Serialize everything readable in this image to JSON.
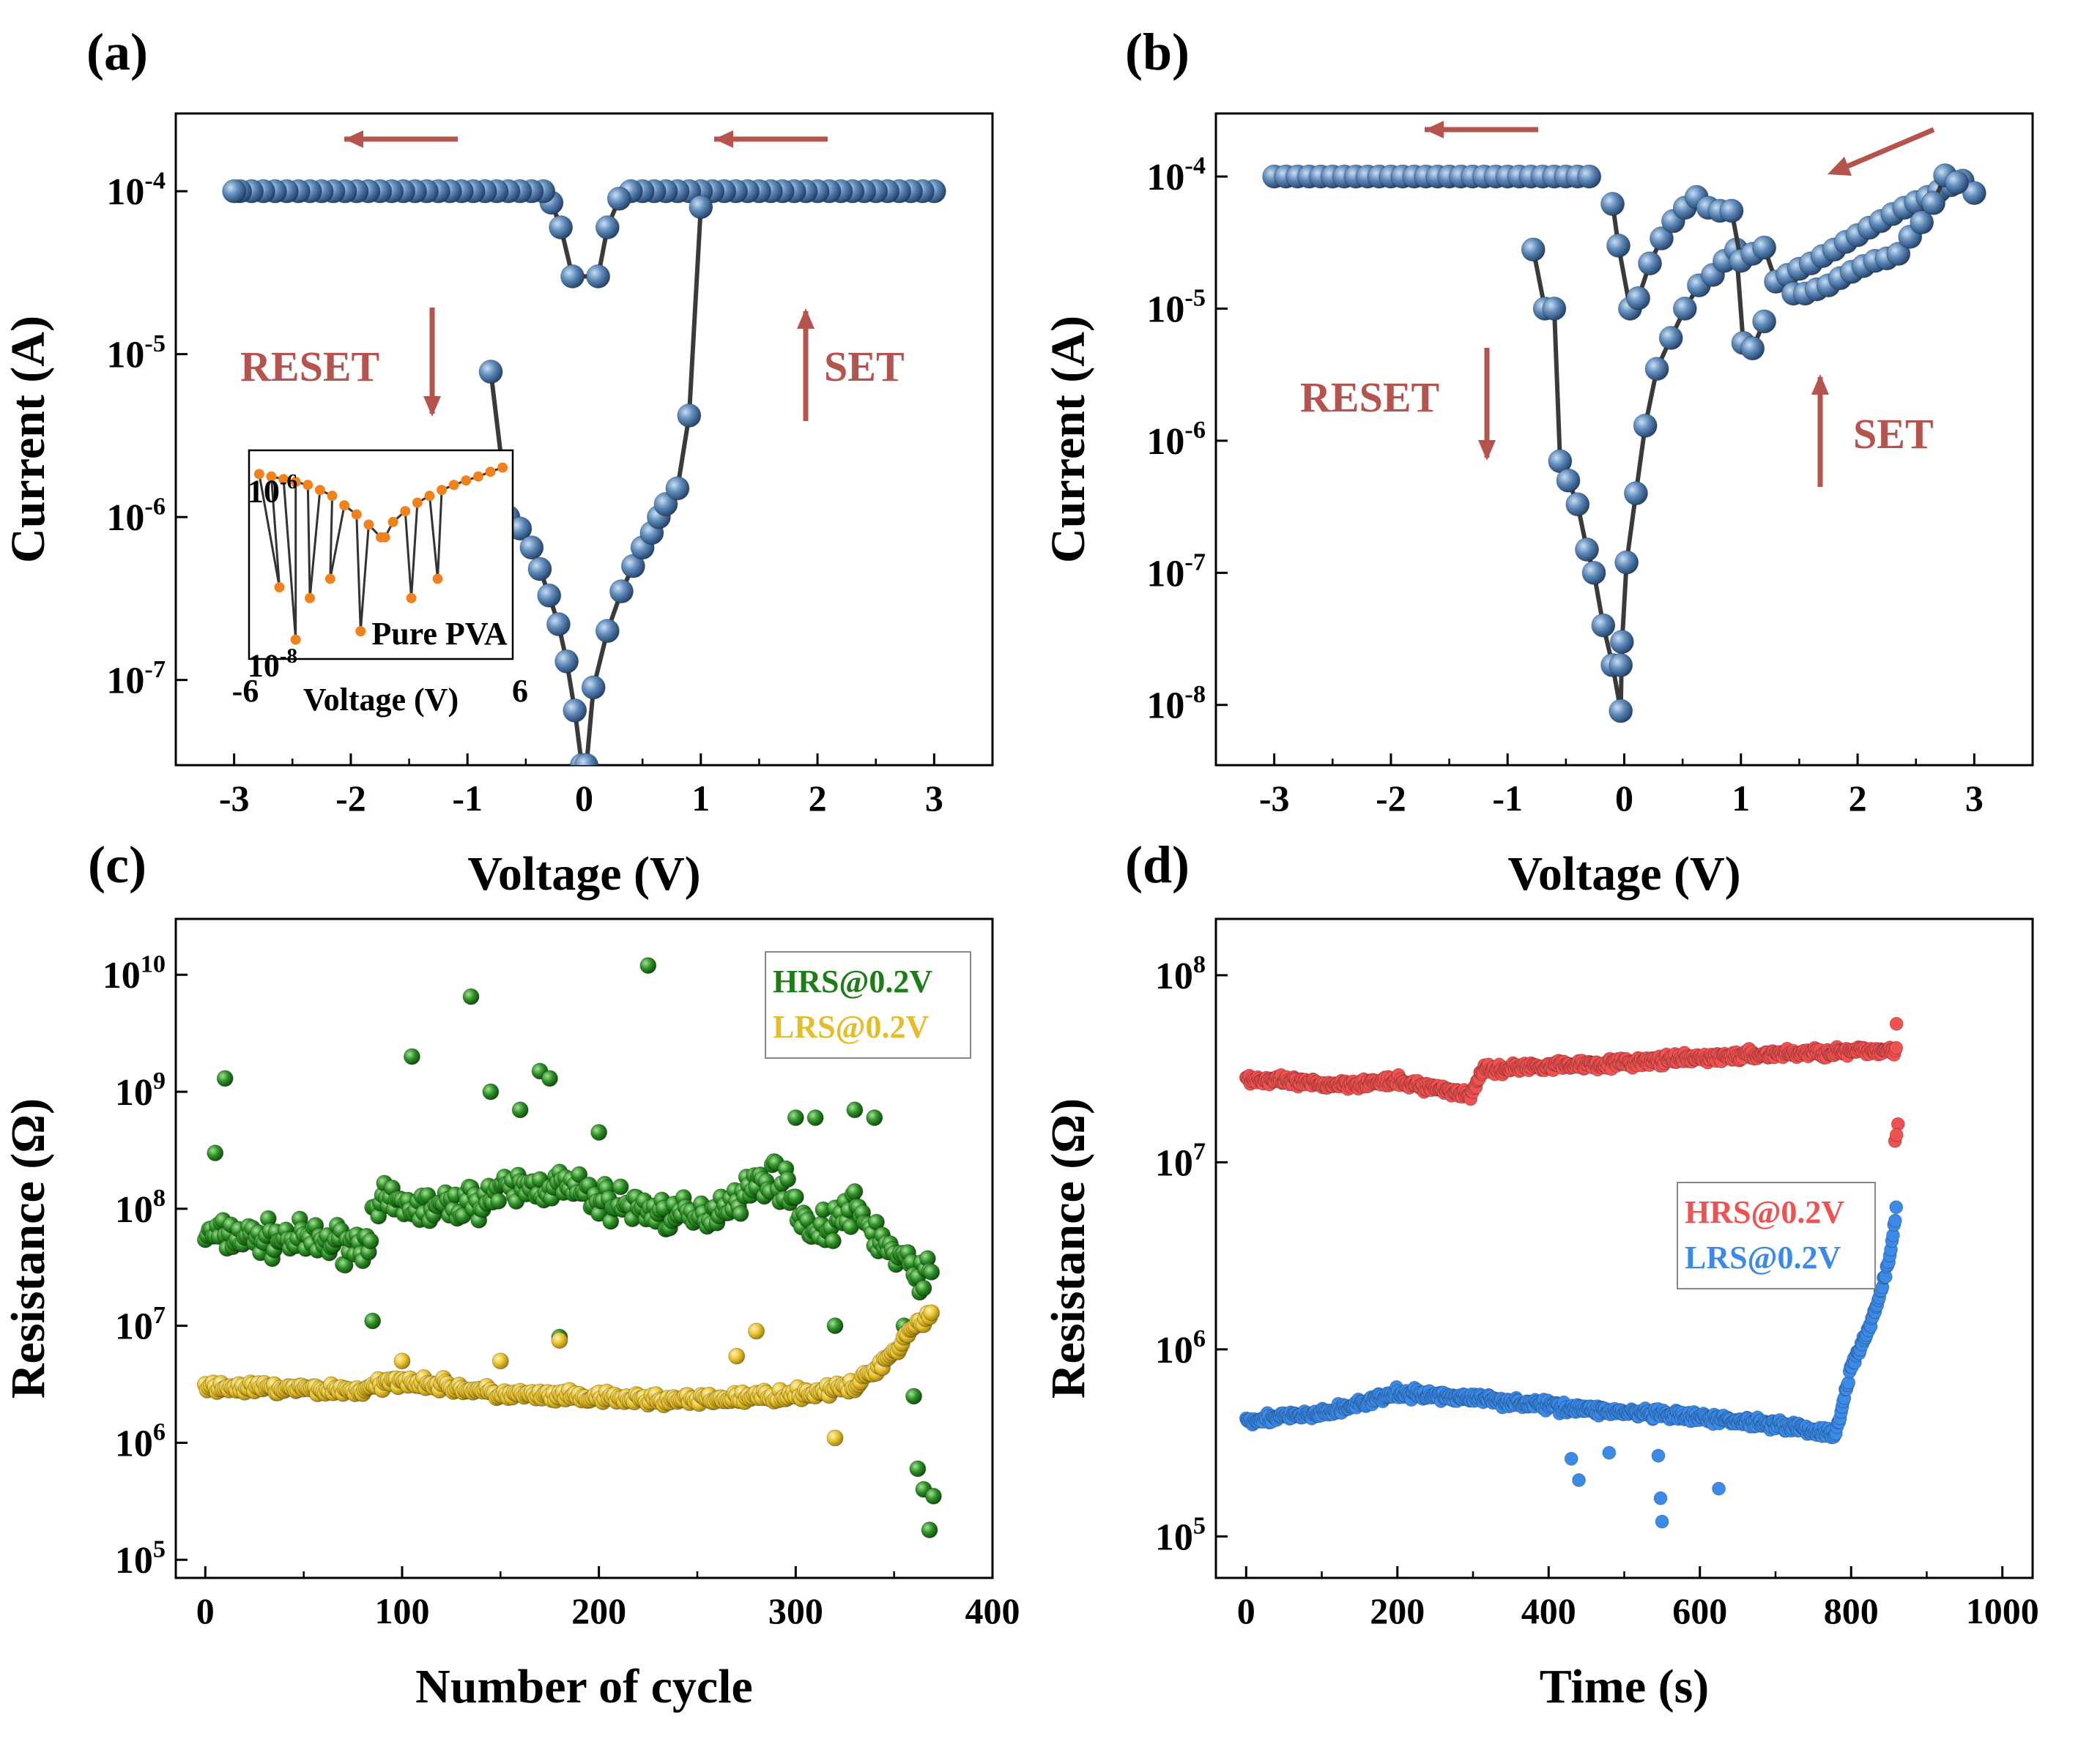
{
  "chart_data": [
    {
      "panel": "(a)",
      "type": "scatter",
      "xlabel": "Voltage (V)",
      "ylabel": "Current (A)",
      "xlim": [
        -3.5,
        3.5
      ],
      "ylim": [
        3e-08,
        0.0003
      ],
      "yscale": "log",
      "xticks": [
        "-3",
        "-2",
        "-1",
        "0",
        "1",
        "2",
        "3"
      ],
      "yticks": [
        {
          "base": "10",
          "exp": "-4",
          "v": 0.0001
        },
        {
          "base": "10",
          "exp": "-5",
          "v": 1e-05
        },
        {
          "base": "10",
          "exp": "-6",
          "v": 1e-06
        },
        {
          "base": "10",
          "exp": "-7",
          "v": 1e-07
        }
      ],
      "annotations": {
        "reset": "RESET",
        "set": "SET"
      },
      "series": [
        {
          "name": "sweep-upper",
          "x": [
            3.0,
            2.9,
            2.8,
            2.7,
            2.6,
            2.5,
            2.4,
            2.3,
            2.2,
            2.1,
            2.0,
            1.9,
            1.8,
            1.7,
            1.6,
            1.5,
            1.4,
            1.3,
            1.2,
            1.1,
            1.0,
            0.9,
            0.8,
            0.7,
            0.6,
            0.5,
            0.4,
            0.3,
            0.2,
            0.12,
            -0.1,
            -0.2,
            -0.28,
            -0.35,
            -0.45,
            -0.55,
            -0.65,
            -0.75,
            -0.85,
            -0.95,
            -1.05,
            -1.15,
            -1.25,
            -1.35,
            -1.45,
            -1.55,
            -1.65,
            -1.75,
            -1.85,
            -1.95,
            -2.05,
            -2.15,
            -2.25,
            -2.35,
            -2.45,
            -2.55,
            -2.65,
            -2.75,
            -2.85,
            -2.95,
            -3.0
          ],
          "y": [
            0.0001,
            0.0001,
            0.0001,
            0.0001,
            0.0001,
            0.0001,
            0.0001,
            0.0001,
            0.0001,
            0.0001,
            0.0001,
            0.0001,
            0.0001,
            0.0001,
            0.0001,
            0.0001,
            0.0001,
            0.0001,
            0.0001,
            0.0001,
            0.0001,
            0.0001,
            0.0001,
            0.0001,
            0.0001,
            0.0001,
            0.0001,
            9e-05,
            6e-05,
            3e-05,
            3e-05,
            6e-05,
            8.5e-05,
            0.0001,
            0.0001,
            0.0001,
            0.0001,
            0.0001,
            0.0001,
            0.0001,
            0.0001,
            0.0001,
            0.0001,
            0.0001,
            0.0001,
            0.0001,
            0.0001,
            0.0001,
            0.0001,
            0.0001,
            0.0001,
            0.0001,
            0.0001,
            0.0001,
            0.0001,
            0.0001,
            0.0001,
            0.0001,
            0.0001,
            0.0001,
            0.0001
          ]
        },
        {
          "name": "sweep-lower",
          "x": [
            -0.8,
            -0.65,
            -0.55,
            -0.45,
            -0.38,
            -0.3,
            -0.22,
            -0.15,
            -0.08,
            -0.02,
            0.02,
            0.08,
            0.2,
            0.32,
            0.42,
            0.5,
            0.58,
            0.64,
            0.7,
            0.8,
            0.9,
            1.0
          ],
          "y": [
            7.8e-06,
            1e-06,
            8.5e-07,
            6.5e-07,
            4.8e-07,
            3.3e-07,
            2.2e-07,
            1.3e-07,
            6.5e-08,
            3e-08,
            3e-08,
            9e-08,
            2e-07,
            3.5e-07,
            5e-07,
            6.5e-07,
            8e-07,
            1e-06,
            1.2e-06,
            1.5e-06,
            4.2e-06,
            8e-05
          ]
        }
      ],
      "inset": {
        "xlabel": "Voltage (V)",
        "xticks": [
          "-6",
          "6"
        ],
        "yticks": [
          {
            "base": "10",
            "exp": "-6",
            "v": 1e-06
          },
          {
            "base": "10",
            "exp": "-8",
            "v": 1e-08
          }
        ],
        "label": "Pure PVA",
        "x": [
          -6,
          -5.4,
          -4.8,
          -4.2,
          -3.6,
          -3.0,
          -2.4,
          -1.8,
          -1.2,
          -0.6,
          0,
          0.6,
          1.2,
          1.8,
          2.4,
          3.0,
          3.6,
          4.2,
          4.8,
          5.4,
          6,
          -5.0,
          -4.2,
          -3.5,
          -2.5,
          -1.0,
          0.2,
          1.5,
          2.8
        ],
        "y": [
          1.6e-06,
          1.5e-06,
          1.4e-06,
          1.3e-06,
          1.2e-06,
          1.05e-06,
          9e-07,
          7e-07,
          5.5e-07,
          4.2e-07,
          3e-07,
          4.5e-07,
          6e-07,
          7.5e-07,
          9e-07,
          1.05e-06,
          1.2e-06,
          1.35e-06,
          1.5e-06,
          1.7e-06,
          1.9e-06,
          8e-08,
          2e-08,
          6e-08,
          1e-07,
          2.5e-08,
          3e-07,
          6e-08,
          1e-07
        ]
      }
    },
    {
      "panel": "(b)",
      "type": "scatter",
      "xlabel": "Voltage (V)",
      "ylabel": "Current (A)",
      "xlim": [
        -3.5,
        3.5
      ],
      "ylim": [
        3.5e-09,
        0.0003
      ],
      "yscale": "log",
      "xticks": [
        "-3",
        "-2",
        "-1",
        "0",
        "1",
        "2",
        "3"
      ],
      "yticks": [
        {
          "base": "10",
          "exp": "-4",
          "v": 0.0001
        },
        {
          "base": "10",
          "exp": "-5",
          "v": 1e-05
        },
        {
          "base": "10",
          "exp": "-6",
          "v": 1e-06
        },
        {
          "base": "10",
          "exp": "-7",
          "v": 1e-07
        },
        {
          "base": "10",
          "exp": "-8",
          "v": 1e-08
        }
      ],
      "annotations": {
        "reset": "RESET",
        "set": "SET"
      },
      "series": [
        {
          "name": "reset-branch",
          "x": [
            -3.0,
            -2.9,
            -2.8,
            -2.7,
            -2.6,
            -2.5,
            -2.4,
            -2.3,
            -2.2,
            -2.1,
            -2.0,
            -1.9,
            -1.8,
            -1.7,
            -1.6,
            -1.5,
            -1.4,
            -1.3,
            -1.2,
            -1.1,
            -1.0,
            -0.9,
            -0.8,
            -0.7,
            -0.6,
            -0.5,
            -0.4,
            -0.3
          ],
          "y": [
            0.0001,
            0.0001,
            0.0001,
            0.0001,
            0.0001,
            0.0001,
            0.0001,
            0.0001,
            0.0001,
            0.0001,
            0.0001,
            0.0001,
            0.0001,
            0.0001,
            0.0001,
            0.0001,
            0.0001,
            0.0001,
            0.0001,
            0.0001,
            0.0001,
            0.0001,
            0.0001,
            0.0001,
            0.0001,
            0.0001,
            0.0001,
            0.0001
          ]
        },
        {
          "name": "low-branch",
          "x": [
            -0.78,
            -0.68,
            -0.6,
            -0.55,
            -0.48,
            -0.4,
            -0.32,
            -0.26,
            -0.18,
            -0.1,
            -0.03,
            -0.02,
            -0.03,
            0.02,
            0.1,
            0.18,
            0.28,
            0.4,
            0.52,
            0.64,
            0.76,
            0.86,
            0.96,
            1.02,
            1.1,
            1.2
          ],
          "y": [
            2.8e-05,
            1e-05,
            1e-05,
            7e-07,
            5e-07,
            3.3e-07,
            1.5e-07,
            1e-07,
            4e-08,
            2e-08,
            9e-09,
            3e-08,
            2e-08,
            1.2e-07,
            4e-07,
            1.3e-06,
            3.5e-06,
            6e-06,
            1e-05,
            1.5e-05,
            1.8e-05,
            2.3e-05,
            2.8e-05,
            5.5e-06,
            5e-06,
            8e-06
          ]
        },
        {
          "name": "set-branch",
          "x": [
            -0.1,
            -0.05,
            0.05,
            0.12,
            0.22,
            0.32,
            0.42,
            0.52,
            0.62,
            0.72,
            0.82,
            0.92,
            1.0,
            1.1,
            1.2,
            1.3,
            1.4,
            1.5,
            1.6,
            1.7,
            1.8,
            1.9,
            2.0,
            2.1,
            2.2,
            2.3,
            2.4,
            2.5,
            2.6,
            2.7,
            2.8,
            2.9,
            3.0
          ],
          "y": [
            6.2e-05,
            3e-05,
            1e-05,
            1.2e-05,
            2.2e-05,
            3.4e-05,
            4.6e-05,
            5.8e-05,
            7e-05,
            5.8e-05,
            5.5e-05,
            5.5e-05,
            2.3e-05,
            2.6e-05,
            2.9e-05,
            1.6e-05,
            1.8e-05,
            2e-05,
            2.2e-05,
            2.5e-05,
            2.8e-05,
            3.2e-05,
            3.6e-05,
            4.1e-05,
            4.6e-05,
            5.2e-05,
            5.8e-05,
            6.4e-05,
            7e-05,
            7.8e-05,
            8.6e-05,
            9.3e-05,
            7.5e-05
          ]
        },
        {
          "name": "set-return",
          "x": [
            1.45,
            1.55,
            1.65,
            1.75,
            1.85,
            1.95,
            2.05,
            2.15,
            2.25,
            2.35,
            2.45,
            2.55,
            2.65,
            2.75,
            2.85
          ],
          "y": [
            1.3e-05,
            1.3e-05,
            1.4e-05,
            1.5e-05,
            1.7e-05,
            1.9e-05,
            2.1e-05,
            2.3e-05,
            2.4e-05,
            2.6e-05,
            3.5e-05,
            4.5e-05,
            6.3e-05,
            0.000102,
            9e-05
          ]
        }
      ]
    },
    {
      "panel": "(c)",
      "type": "scatter",
      "xlabel": "Number of cycle",
      "ylabel": "Resistance (Ω)",
      "xlim": [
        -15,
        400
      ],
      "ylim": [
        70000.0,
        30000000000.0
      ],
      "yscale": "log",
      "xticks": [
        "0",
        "100",
        "200",
        "300",
        "400"
      ],
      "yticks": [
        {
          "base": "10",
          "exp": "5",
          "v": 100000.0
        },
        {
          "base": "10",
          "exp": "6",
          "v": 1000000.0
        },
        {
          "base": "10",
          "exp": "7",
          "v": 10000000.0
        },
        {
          "base": "10",
          "exp": "8",
          "v": 100000000.0
        },
        {
          "base": "10",
          "exp": "9",
          "v": 1000000000.0
        },
        {
          "base": "10",
          "exp": "10",
          "v": 10000000000.0
        }
      ],
      "series": [
        {
          "name": "HRS@0.2V",
          "color": "#1e7d16",
          "x_count": 370,
          "profile_x": [
            0,
            80,
            90,
            120,
            160,
            180,
            200,
            250,
            290,
            310,
            330,
            350,
            360,
            370
          ],
          "profile_y": [
            60000000.0,
            50000000.0,
            110000000.0,
            100000000.0,
            150000000.0,
            160000000.0,
            120000000.0,
            80000000.0,
            200000000.0,
            60000000.0,
            100000000.0,
            40000000.0,
            30000000.0,
            26000000.0
          ],
          "outliers_x": [
            5,
            10,
            85,
            105,
            135,
            145,
            160,
            170,
            175,
            180,
            200,
            225,
            300,
            310,
            320,
            330,
            340,
            355,
            360,
            362,
            365,
            368,
            370
          ],
          "outliers_y": [
            300000000.0,
            1300000000.0,
            11000000.0,
            2000000000.0,
            6500000000.0,
            1000000000.0,
            700000000.0,
            1500000000.0,
            1300000000.0,
            8000000.0,
            450000000.0,
            12000000000.0,
            600000000.0,
            600000000.0,
            10000000.0,
            700000000.0,
            600000000.0,
            10000000.0,
            2500000.0,
            600000.0,
            400000.0,
            180000.0,
            350000.0
          ]
        },
        {
          "name": "LRS@0.2V",
          "color": "#e3bd2a",
          "x_count": 370,
          "profile_x": [
            0,
            80,
            100,
            150,
            200,
            250,
            300,
            330,
            350,
            360,
            370
          ],
          "profile_y": [
            3000000.0,
            2800000.0,
            3500000.0,
            2600000.0,
            2400000.0,
            2300000.0,
            2600000.0,
            3000000.0,
            6000000.0,
            10000000.0,
            13000000.0
          ],
          "outliers_x": [
            100,
            150,
            180,
            270,
            280,
            320
          ],
          "outliers_y": [
            5000000.0,
            5000000.0,
            7500000.0,
            5500000.0,
            9000000.0,
            1100000.0
          ]
        }
      ]
    },
    {
      "panel": "(d)",
      "type": "scatter",
      "xlabel": "Time (s)",
      "ylabel": "Resistance (Ω)",
      "xlim": [
        -40,
        1040
      ],
      "ylim": [
        60000.0,
        200000000.0
      ],
      "yscale": "log",
      "xticks": [
        "0",
        "200",
        "400",
        "600",
        "800",
        "1000"
      ],
      "yticks": [
        {
          "base": "10",
          "exp": "5",
          "v": 100000.0
        },
        {
          "base": "10",
          "exp": "6",
          "v": 1000000.0
        },
        {
          "base": "10",
          "exp": "7",
          "v": 10000000.0
        },
        {
          "base": "10",
          "exp": "8",
          "v": 100000000.0
        }
      ],
      "series": [
        {
          "name": "HRS@0.2V",
          "color": "#f05252",
          "profile_x": [
            0,
            100,
            200,
            300,
            310,
            400,
            500,
            600,
            700,
            800,
            860
          ],
          "profile_y": [
            28000000.0,
            26000000.0,
            27000000.0,
            23000000.0,
            31000000.0,
            33000000.0,
            34000000.0,
            36000000.0,
            38000000.0,
            39000000.0,
            40000000.0
          ],
          "outliers_x": [
            860,
            862,
            858,
            860
          ],
          "outliers_y": [
            55000000.0,
            16000000.0,
            13000000.0,
            14000000.0
          ]
        },
        {
          "name": "LRS@0.2V",
          "color": "#3b8ae8",
          "profile_x": [
            0,
            100,
            200,
            300,
            400,
            500,
            600,
            700,
            780,
            800,
            830,
            850,
            860
          ],
          "profile_y": [
            420000.0,
            450000.0,
            580000.0,
            550000.0,
            500000.0,
            460000.0,
            430000.0,
            400000.0,
            350000.0,
            800000.0,
            1500000.0,
            3000000.0,
            5500000.0
          ],
          "outliers_x": [
            430,
            440,
            480,
            545,
            548,
            550,
            625
          ],
          "outliers_y": [
            260000.0,
            200000.0,
            280000.0,
            270000.0,
            160000.0,
            120000.0,
            180000.0
          ]
        }
      ]
    }
  ]
}
